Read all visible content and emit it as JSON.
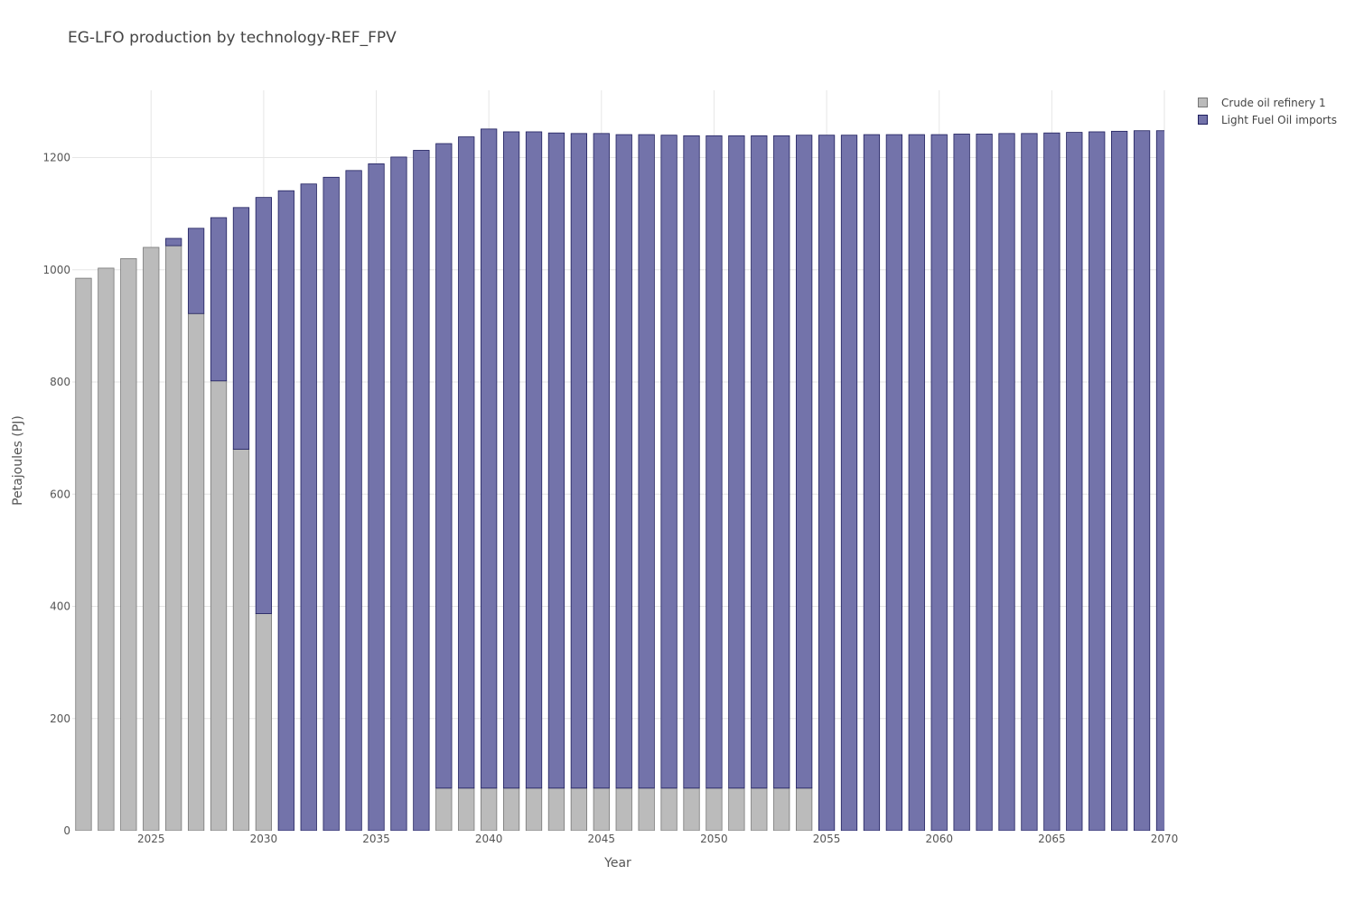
{
  "chart_data": {
    "type": "bar",
    "stacked": true,
    "title": "EG-LFO production by technology-REF_FPV",
    "xlabel": "Year",
    "ylabel": "Petajoules (PJ)",
    "xlim": [
      2021.5,
      2070
    ],
    "ylim": [
      0,
      1320
    ],
    "x_ticks": [
      2025,
      2030,
      2035,
      2040,
      2045,
      2050,
      2055,
      2060,
      2065,
      2070
    ],
    "y_ticks": [
      0,
      200,
      400,
      600,
      800,
      1000,
      1200
    ],
    "grid": true,
    "legend_position": "top-right",
    "categories": [
      2022,
      2023,
      2024,
      2025,
      2026,
      2027,
      2028,
      2029,
      2030,
      2031,
      2032,
      2033,
      2034,
      2035,
      2036,
      2037,
      2038,
      2039,
      2040,
      2041,
      2042,
      2043,
      2044,
      2045,
      2046,
      2047,
      2048,
      2049,
      2050,
      2051,
      2052,
      2053,
      2054,
      2055,
      2056,
      2057,
      2058,
      2059,
      2060,
      2061,
      2062,
      2063,
      2064,
      2065,
      2066,
      2067,
      2068,
      2069,
      2070
    ],
    "series": [
      {
        "name": "Crude oil refinery 1",
        "color": "#bbbbbb",
        "stroke": "#777777",
        "values": [
          985,
          1003,
          1020,
          1040,
          1043,
          922,
          802,
          680,
          387,
          0,
          0,
          0,
          0,
          0,
          0,
          0,
          76,
          76,
          76,
          76,
          76,
          76,
          76,
          76,
          76,
          76,
          76,
          76,
          76,
          76,
          76,
          76,
          76,
          0,
          0,
          0,
          0,
          0,
          0,
          0,
          0,
          0,
          0,
          0,
          0,
          0,
          0,
          0,
          0
        ]
      },
      {
        "name": "Light Fuel Oil imports",
        "color": "#7373aa",
        "stroke": "#1f1f5e",
        "values": [
          0,
          0,
          0,
          0,
          13,
          152,
          291,
          431,
          742,
          1141,
          1153,
          1165,
          1177,
          1189,
          1201,
          1213,
          1149,
          1161,
          1175,
          1170,
          1170,
          1168,
          1167,
          1167,
          1165,
          1165,
          1164,
          1163,
          1163,
          1163,
          1163,
          1163,
          1164,
          1240,
          1240,
          1241,
          1241,
          1241,
          1241,
          1242,
          1242,
          1243,
          1243,
          1244,
          1245,
          1246,
          1247,
          1248,
          1248
        ]
      }
    ]
  }
}
